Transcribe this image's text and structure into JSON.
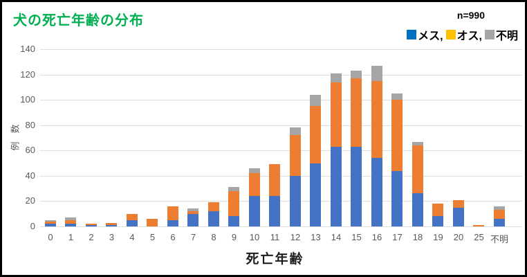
{
  "chart_data": {
    "type": "bar",
    "stacked": true,
    "title": "犬の死亡年齢の分布",
    "annotation": "n=990",
    "xlabel": "死亡年齢",
    "ylabel": "例数",
    "ylim": [
      0,
      140
    ],
    "yticks": [
      0,
      20,
      40,
      60,
      80,
      100,
      120,
      140
    ],
    "grid": "horizontal",
    "legend_position": "top-right",
    "title_color": "#00B050",
    "categories": [
      "0",
      "1",
      "2",
      "3",
      "4",
      "5",
      "6",
      "7",
      "8",
      "9",
      "10",
      "11",
      "12",
      "13",
      "14",
      "15",
      "16",
      "17",
      "18",
      "19",
      "20",
      "25",
      "不明"
    ],
    "series": [
      {
        "name": "メス",
        "legend_label": "メス,",
        "legend_color": "#0070C0",
        "bar_color": "#4472C4",
        "values": [
          2,
          2,
          1,
          1,
          5,
          0,
          5,
          10,
          12,
          8,
          24,
          24,
          40,
          50,
          63,
          63,
          54,
          44,
          26,
          8,
          15,
          0,
          6
        ]
      },
      {
        "name": "オス",
        "legend_label": "オス,",
        "legend_color": "#FFC000",
        "bar_color": "#ED7D31",
        "values": [
          2,
          3,
          1,
          2,
          5,
          6,
          11,
          2,
          7,
          20,
          18,
          25,
          32,
          45,
          51,
          54,
          61,
          56,
          38,
          10,
          6,
          1,
          7
        ]
      },
      {
        "name": "不明",
        "legend_label": "不明",
        "legend_color": "#A6A6A6",
        "bar_color": "#A5A5A5",
        "values": [
          1,
          2,
          0,
          0,
          0,
          0,
          0,
          2,
          0,
          3,
          4,
          0,
          6,
          9,
          7,
          6,
          12,
          5,
          3,
          0,
          0,
          0,
          3
        ]
      }
    ]
  }
}
